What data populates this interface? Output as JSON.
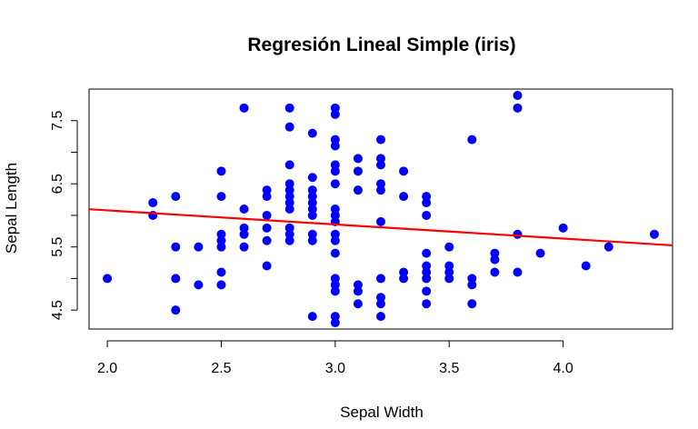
{
  "chart_data": {
    "type": "scatter",
    "title": "Regresión Lineal Simple (iris)",
    "xlabel": "Sepal Width",
    "ylabel": "Sepal Length",
    "xlim": [
      1.92,
      4.48
    ],
    "ylim": [
      4.2,
      8.0
    ],
    "x_ticks": [
      2.0,
      2.5,
      3.0,
      3.5,
      4.0
    ],
    "x_tick_labels": [
      "2.0",
      "2.5",
      "3.0",
      "3.5",
      "4.0"
    ],
    "y_ticks": [
      4.5,
      5.0,
      5.5,
      6.0,
      6.5,
      7.0,
      7.5
    ],
    "y_tick_labels": [
      "4.5",
      "",
      "5.5",
      "",
      "6.5",
      "",
      "7.5"
    ],
    "point_color": "#0000ff",
    "line_color": "#ff0000",
    "regression": {
      "intercept": 6.526,
      "slope": -0.2234
    },
    "points": [
      [
        2.0,
        5.0
      ],
      [
        2.2,
        6.0
      ],
      [
        2.2,
        6.2
      ],
      [
        2.3,
        4.5
      ],
      [
        2.3,
        5.0
      ],
      [
        2.3,
        5.5
      ],
      [
        2.3,
        6.3
      ],
      [
        2.4,
        4.9
      ],
      [
        2.4,
        5.5
      ],
      [
        2.5,
        4.9
      ],
      [
        2.5,
        5.1
      ],
      [
        2.5,
        5.5
      ],
      [
        2.5,
        5.6
      ],
      [
        2.5,
        5.7
      ],
      [
        2.5,
        6.3
      ],
      [
        2.5,
        6.7
      ],
      [
        2.6,
        5.5
      ],
      [
        2.6,
        5.7
      ],
      [
        2.6,
        5.8
      ],
      [
        2.6,
        6.1
      ],
      [
        2.6,
        7.7
      ],
      [
        2.7,
        5.2
      ],
      [
        2.7,
        5.6
      ],
      [
        2.7,
        5.8
      ],
      [
        2.7,
        6.0
      ],
      [
        2.7,
        6.3
      ],
      [
        2.7,
        6.4
      ],
      [
        2.8,
        5.6
      ],
      [
        2.8,
        5.7
      ],
      [
        2.8,
        5.8
      ],
      [
        2.8,
        6.1
      ],
      [
        2.8,
        6.2
      ],
      [
        2.8,
        6.3
      ],
      [
        2.8,
        6.4
      ],
      [
        2.8,
        6.5
      ],
      [
        2.8,
        6.8
      ],
      [
        2.8,
        7.4
      ],
      [
        2.8,
        7.7
      ],
      [
        2.9,
        4.4
      ],
      [
        2.9,
        5.6
      ],
      [
        2.9,
        5.7
      ],
      [
        2.9,
        6.0
      ],
      [
        2.9,
        6.1
      ],
      [
        2.9,
        6.2
      ],
      [
        2.9,
        6.3
      ],
      [
        2.9,
        6.4
      ],
      [
        2.9,
        6.6
      ],
      [
        2.9,
        7.3
      ],
      [
        3.0,
        4.3
      ],
      [
        3.0,
        4.4
      ],
      [
        3.0,
        4.8
      ],
      [
        3.0,
        4.9
      ],
      [
        3.0,
        5.0
      ],
      [
        3.0,
        5.4
      ],
      [
        3.0,
        5.6
      ],
      [
        3.0,
        5.7
      ],
      [
        3.0,
        5.9
      ],
      [
        3.0,
        6.0
      ],
      [
        3.0,
        6.1
      ],
      [
        3.0,
        6.5
      ],
      [
        3.0,
        6.7
      ],
      [
        3.0,
        6.8
      ],
      [
        3.0,
        7.1
      ],
      [
        3.0,
        7.2
      ],
      [
        3.0,
        7.6
      ],
      [
        3.0,
        7.7
      ],
      [
        3.1,
        4.6
      ],
      [
        3.1,
        4.8
      ],
      [
        3.1,
        4.9
      ],
      [
        3.1,
        6.4
      ],
      [
        3.1,
        6.7
      ],
      [
        3.1,
        6.9
      ],
      [
        3.2,
        4.4
      ],
      [
        3.2,
        4.6
      ],
      [
        3.2,
        4.7
      ],
      [
        3.2,
        5.0
      ],
      [
        3.2,
        5.9
      ],
      [
        3.2,
        6.4
      ],
      [
        3.2,
        6.5
      ],
      [
        3.2,
        6.8
      ],
      [
        3.2,
        6.9
      ],
      [
        3.2,
        7.2
      ],
      [
        3.3,
        5.0
      ],
      [
        3.3,
        5.1
      ],
      [
        3.3,
        6.3
      ],
      [
        3.3,
        6.7
      ],
      [
        3.4,
        4.6
      ],
      [
        3.4,
        4.8
      ],
      [
        3.4,
        5.0
      ],
      [
        3.4,
        5.1
      ],
      [
        3.4,
        5.2
      ],
      [
        3.4,
        5.4
      ],
      [
        3.4,
        6.0
      ],
      [
        3.4,
        6.2
      ],
      [
        3.4,
        6.3
      ],
      [
        3.5,
        5.0
      ],
      [
        3.5,
        5.1
      ],
      [
        3.5,
        5.2
      ],
      [
        3.5,
        5.5
      ],
      [
        3.6,
        4.6
      ],
      [
        3.6,
        4.9
      ],
      [
        3.6,
        5.0
      ],
      [
        3.6,
        7.2
      ],
      [
        3.7,
        5.1
      ],
      [
        3.7,
        5.3
      ],
      [
        3.7,
        5.4
      ],
      [
        3.8,
        5.1
      ],
      [
        3.8,
        5.7
      ],
      [
        3.8,
        7.7
      ],
      [
        3.8,
        7.9
      ],
      [
        3.9,
        5.4
      ],
      [
        4.0,
        5.8
      ],
      [
        4.1,
        5.2
      ],
      [
        4.2,
        5.5
      ],
      [
        4.4,
        5.7
      ]
    ]
  }
}
